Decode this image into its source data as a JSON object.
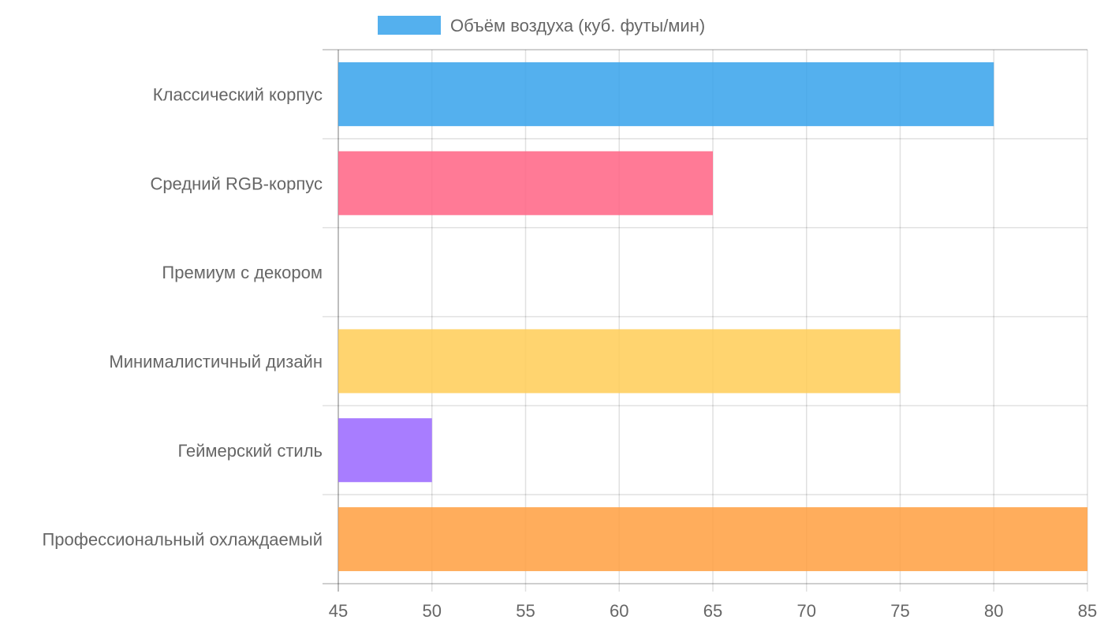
{
  "chart_data": {
    "type": "bar",
    "orientation": "horizontal",
    "title": "",
    "xlabel": "",
    "ylabel": "",
    "xlim": [
      45,
      85
    ],
    "xticks": [
      "45",
      "50",
      "55",
      "60",
      "65",
      "70",
      "75",
      "80",
      "85"
    ],
    "grid": true,
    "legend_position": "top",
    "series": [
      {
        "name": "Объём воздуха (куб. футы/мин)",
        "legend_color": "#36a2eb"
      }
    ],
    "categories": [
      "Классический корпус",
      "Средний RGB-корпус",
      "Премиум с декором",
      "Минималистичный дизайн",
      "Геймерский стиль",
      "Профессиональный охлаждаемый"
    ],
    "values": [
      80,
      65,
      45,
      75,
      50,
      85
    ],
    "bar_colors": [
      "#36a2eb",
      "#ff6384",
      "#4bc0c0",
      "#ffcd56",
      "#9966ff",
      "#ff9f40"
    ]
  }
}
